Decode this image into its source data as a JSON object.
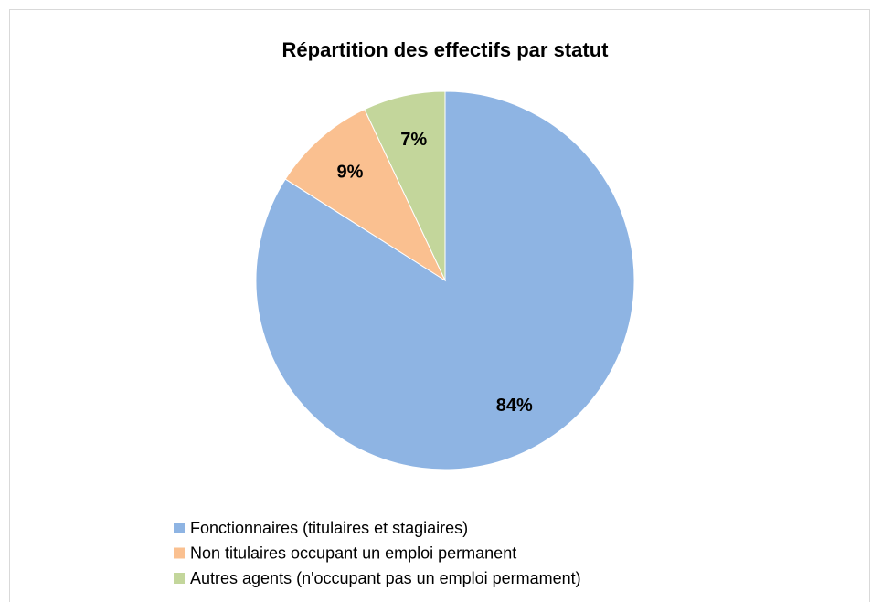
{
  "chart_data": {
    "type": "pie",
    "title": "Répartition des effectifs par statut",
    "categories": [
      "Fonctionnaires (titulaires et stagiaires)",
      "Non titulaires occupant un emploi permanent",
      "Autres agents (n'occupant pas un emploi permament)"
    ],
    "values": [
      84,
      9,
      7
    ],
    "value_labels": [
      "84%",
      "9%",
      "7%"
    ],
    "colors": [
      "#8EB4E3",
      "#FAC090",
      "#C3D69B"
    ],
    "legend": "bottom"
  }
}
